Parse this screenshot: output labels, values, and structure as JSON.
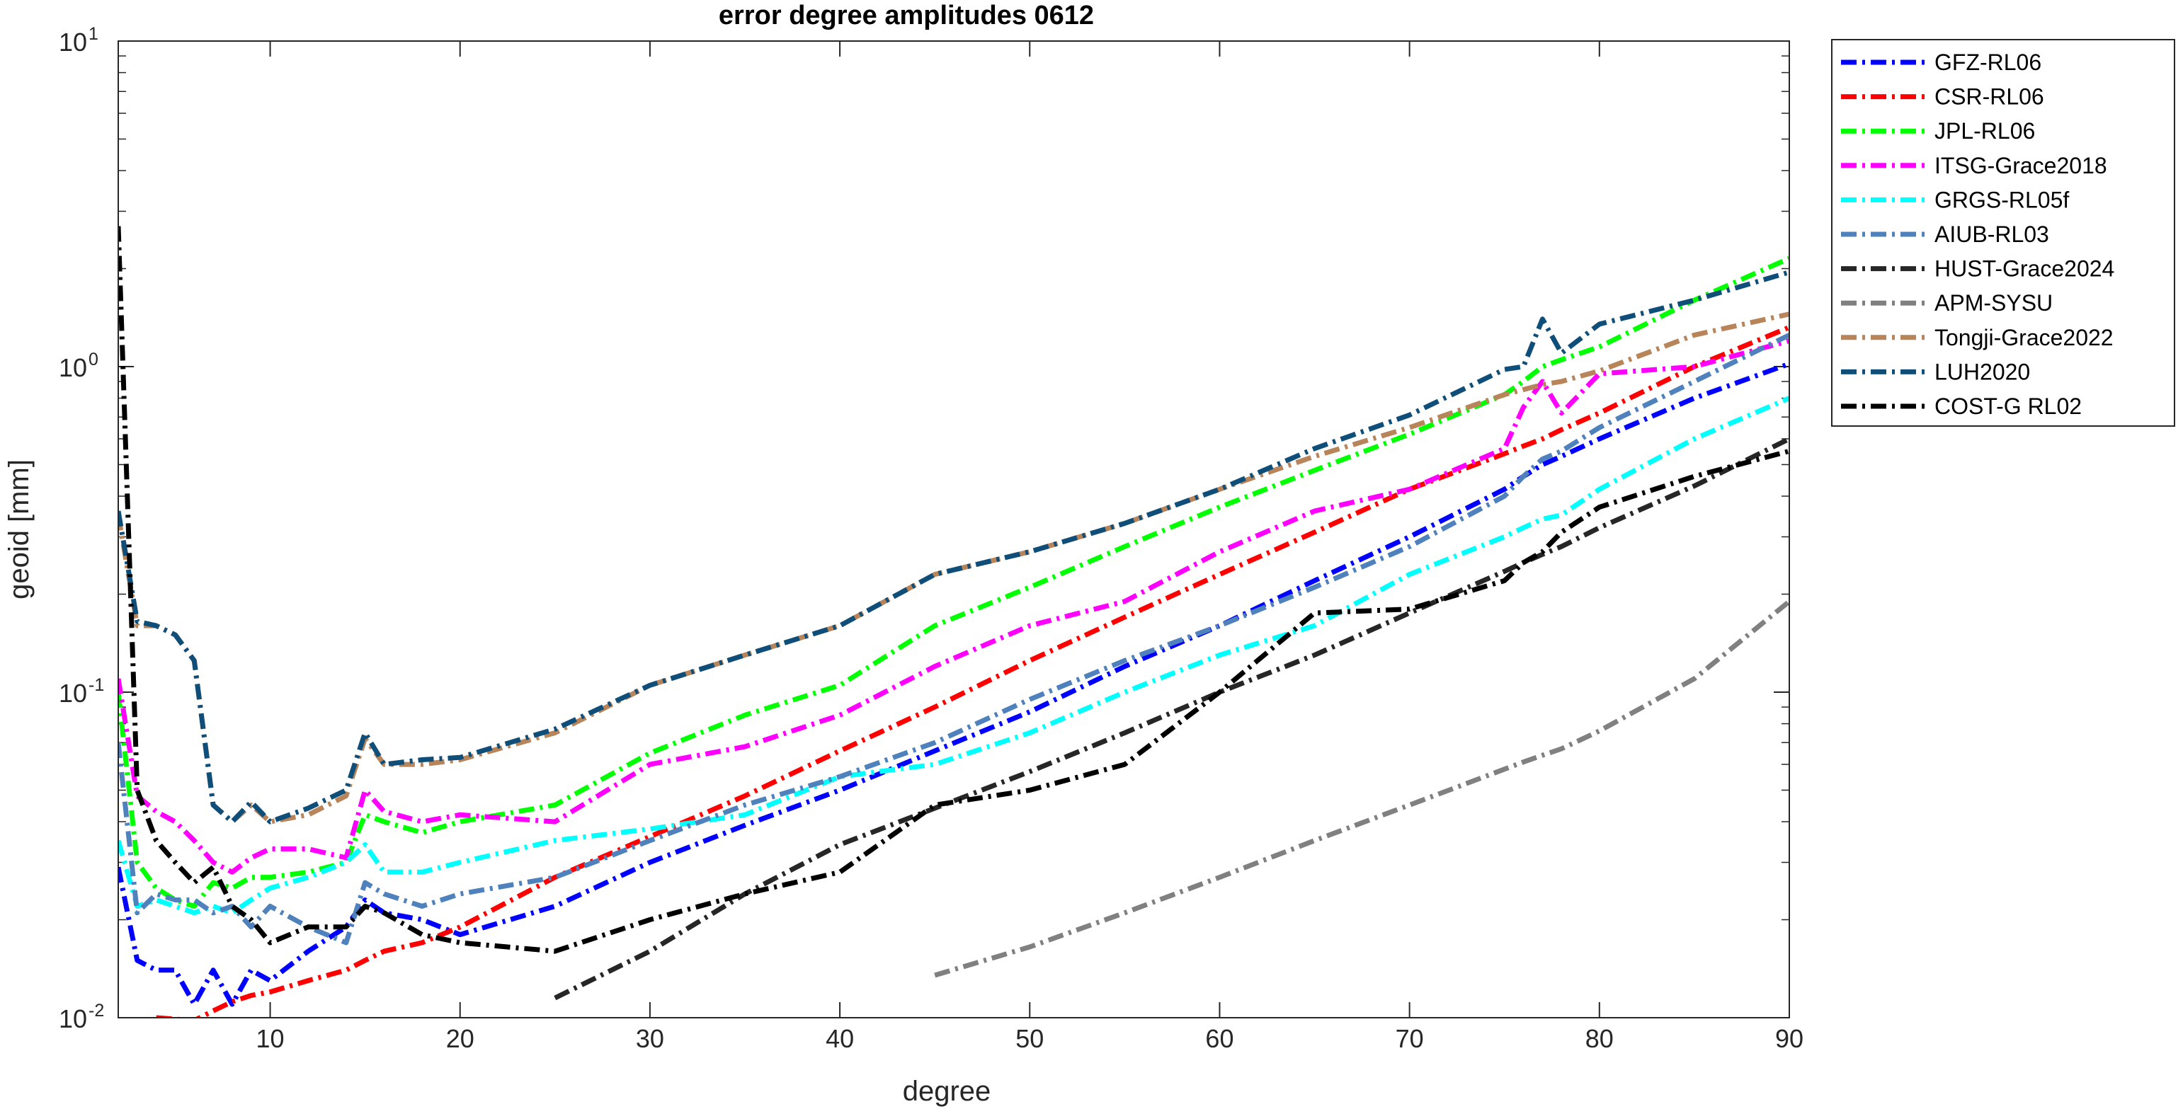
{
  "chart_data": {
    "type": "line",
    "title": "error degree amplitudes 0612",
    "xlabel": "degree",
    "ylabel": "geoid [mm]",
    "xlim": [
      2,
      90
    ],
    "ylim": [
      0.01,
      10
    ],
    "yscale": "log",
    "grid": false,
    "legend_position": "outside-top-right",
    "x_ticks": [
      10,
      20,
      30,
      40,
      50,
      60,
      70,
      80,
      90
    ],
    "y_ticks": [
      {
        "value": 0.01,
        "base": "10",
        "exp": "-2"
      },
      {
        "value": 0.1,
        "base": "10",
        "exp": "-1"
      },
      {
        "value": 1,
        "base": "10",
        "exp": "0"
      },
      {
        "value": 10,
        "base": "10",
        "exp": "1"
      }
    ],
    "x": [
      2,
      3,
      4,
      5,
      6,
      7,
      8,
      9,
      10,
      12,
      14,
      15,
      16,
      18,
      20,
      25,
      30,
      35,
      40,
      45,
      50,
      55,
      60,
      65,
      70,
      75,
      76,
      77,
      78,
      80,
      85,
      90
    ],
    "series": [
      {
        "name": "GFZ-RL06",
        "color": "#0000ff",
        "values": [
          0.029,
          0.015,
          0.014,
          0.014,
          0.011,
          0.014,
          0.011,
          0.014,
          0.013,
          0.016,
          0.019,
          0.023,
          0.021,
          0.02,
          0.018,
          0.022,
          0.03,
          0.039,
          0.05,
          0.066,
          0.087,
          0.12,
          0.16,
          0.22,
          0.3,
          0.42,
          0.46,
          0.5,
          0.53,
          0.6,
          0.8,
          1.02
        ]
      },
      {
        "name": "CSR-RL06",
        "color": "#ff0000",
        "values": [
          null,
          null,
          0.01,
          0.0099,
          0.0098,
          0.0105,
          0.0112,
          0.0117,
          0.012,
          0.013,
          0.014,
          0.015,
          0.016,
          0.017,
          0.019,
          0.027,
          0.036,
          0.048,
          0.066,
          0.09,
          0.125,
          0.17,
          0.23,
          0.31,
          0.42,
          0.54,
          0.57,
          0.6,
          0.64,
          0.72,
          1.0,
          1.32
        ]
      },
      {
        "name": "JPL-RL06",
        "color": "#00ff00",
        "values": [
          0.1,
          0.03,
          0.025,
          0.023,
          0.022,
          0.026,
          0.025,
          0.027,
          0.027,
          0.028,
          0.03,
          0.042,
          0.04,
          0.037,
          0.04,
          0.045,
          0.065,
          0.085,
          0.105,
          0.16,
          0.21,
          0.28,
          0.37,
          0.48,
          0.62,
          0.82,
          0.9,
          1.0,
          1.05,
          1.15,
          1.6,
          2.15
        ]
      },
      {
        "name": "ITSG-Grace2018",
        "color": "#ff00ff",
        "values": [
          0.11,
          0.048,
          0.043,
          0.04,
          0.035,
          0.03,
          0.028,
          0.031,
          0.033,
          0.033,
          0.031,
          0.05,
          0.043,
          0.04,
          0.042,
          0.04,
          0.06,
          0.068,
          0.085,
          0.12,
          0.16,
          0.19,
          0.27,
          0.36,
          0.42,
          0.56,
          0.75,
          0.9,
          0.72,
          0.95,
          1.0,
          1.2
        ]
      },
      {
        "name": "GRGS-RL05f",
        "color": "#00ffff",
        "values": [
          0.035,
          0.022,
          0.023,
          0.022,
          0.021,
          0.022,
          0.021,
          0.023,
          0.025,
          0.027,
          0.03,
          0.034,
          0.028,
          0.028,
          0.03,
          0.035,
          0.038,
          0.042,
          0.055,
          0.06,
          0.075,
          0.1,
          0.13,
          0.16,
          0.23,
          0.3,
          0.32,
          0.34,
          0.35,
          0.42,
          0.6,
          0.8
        ]
      },
      {
        "name": "AIUB-RL03",
        "color": "#4f81bd",
        "values": [
          0.07,
          0.021,
          0.024,
          0.023,
          0.023,
          0.021,
          0.022,
          0.019,
          0.022,
          0.019,
          0.017,
          0.026,
          0.024,
          0.022,
          0.024,
          0.027,
          0.035,
          0.045,
          0.055,
          0.07,
          0.095,
          0.125,
          0.16,
          0.21,
          0.28,
          0.4,
          0.46,
          0.52,
          0.55,
          0.65,
          0.9,
          1.25
        ]
      },
      {
        "name": "HUST-Grace2024",
        "color": "#262626",
        "values": [
          null,
          null,
          null,
          null,
          null,
          null,
          null,
          null,
          null,
          null,
          null,
          null,
          null,
          null,
          null,
          0.0115,
          0.016,
          0.024,
          0.034,
          0.044,
          0.057,
          0.075,
          0.1,
          0.13,
          0.175,
          0.235,
          0.25,
          0.265,
          0.28,
          0.32,
          0.43,
          0.6
        ]
      },
      {
        "name": "APM-SYSU",
        "color": "#808080",
        "values": [
          null,
          null,
          null,
          null,
          null,
          null,
          null,
          null,
          null,
          null,
          null,
          null,
          null,
          null,
          null,
          null,
          null,
          null,
          null,
          0.0135,
          0.0165,
          0.021,
          0.027,
          0.035,
          0.045,
          0.058,
          0.061,
          0.064,
          0.067,
          0.076,
          0.11,
          0.19
        ]
      },
      {
        "name": "Tongji-Grace2022",
        "color": "#b8845a",
        "values": [
          0.35,
          0.16,
          0.16,
          0.15,
          0.125,
          0.045,
          0.04,
          0.045,
          0.04,
          0.042,
          0.048,
          0.072,
          0.06,
          0.06,
          0.062,
          0.075,
          0.105,
          0.13,
          0.16,
          0.23,
          0.27,
          0.33,
          0.42,
          0.53,
          0.65,
          0.82,
          0.85,
          0.88,
          0.9,
          0.97,
          1.25,
          1.45
        ]
      },
      {
        "name": "LUH2020",
        "color": "#104e7a",
        "values": [
          0.36,
          0.165,
          0.16,
          0.15,
          0.125,
          0.045,
          0.04,
          0.046,
          0.04,
          0.044,
          0.05,
          0.075,
          0.06,
          0.062,
          0.063,
          0.077,
          0.105,
          0.13,
          0.16,
          0.23,
          0.27,
          0.33,
          0.42,
          0.56,
          0.71,
          0.98,
          1.0,
          1.4,
          1.1,
          1.35,
          1.6,
          1.95
        ]
      },
      {
        "name": "COST-G RL02",
        "color": "#000000",
        "values": [
          2.7,
          0.05,
          0.035,
          0.03,
          0.026,
          0.029,
          0.022,
          0.02,
          0.017,
          0.019,
          0.019,
          0.022,
          0.021,
          0.018,
          0.017,
          0.016,
          0.02,
          0.024,
          0.028,
          0.045,
          0.05,
          0.06,
          0.1,
          0.175,
          0.18,
          0.22,
          0.25,
          0.27,
          0.31,
          0.37,
          0.46,
          0.55
        ]
      }
    ]
  }
}
